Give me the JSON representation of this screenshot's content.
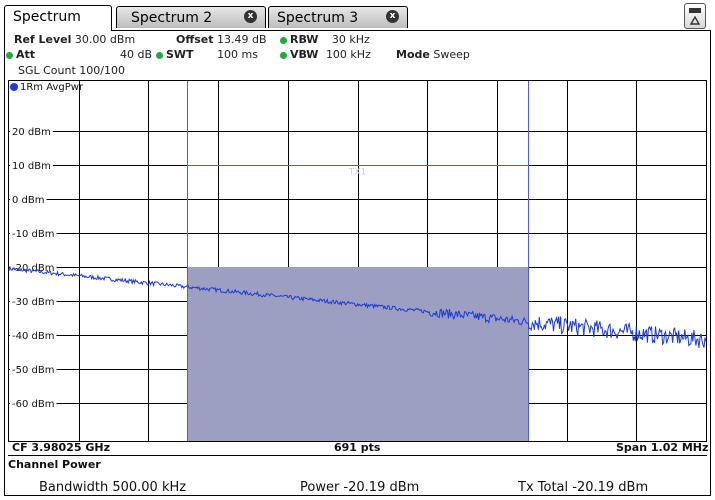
{
  "tabs": {
    "active": "Spectrum",
    "tab2": "Spectrum 2",
    "tab3": "Spectrum 3",
    "close": "x"
  },
  "header": {
    "ref_level_label": "Ref Level",
    "ref_level_value": "30.00 dBm",
    "offset_label": "Offset",
    "offset_value": "13.49 dB",
    "rbw_label": "RBW",
    "rbw_value": "30 kHz",
    "att_label": "Att",
    "att_value": "40 dB",
    "swt_label": "SWT",
    "swt_value": "100 ms",
    "vbw_label": "VBW",
    "vbw_value": "100 kHz",
    "mode_label": "Mode",
    "mode_value": "Sweep",
    "sgl_count": "SGL Count 100/100",
    "trace_label": "1Rm AvgPwr"
  },
  "footer": {
    "cf": "CF 3.98025 GHz",
    "pts": "691 pts",
    "span": "Span 1.02 MHz"
  },
  "channel_power": {
    "title": "Channel Power",
    "bandwidth": "Bandwidth  500.00 kHz",
    "power": "Power  -20.19 dBm",
    "tx_total": "Tx Total  -20.19 dBm"
  },
  "chart_data": {
    "type": "line",
    "ylim": [
      -70,
      30
    ],
    "y_ticks": [
      "20 dBm",
      "10 dBm",
      "0 dBm",
      "-10 dBm",
      "-20 dBm",
      "-30 dBm",
      "-40 dBm",
      "-50 dBm",
      "-60 dBm"
    ],
    "y_tick_values": [
      20,
      10,
      0,
      -10,
      -20,
      -30,
      -40,
      -50,
      -60
    ],
    "grid": true,
    "channel_label": "TX1",
    "channel_bounds_fraction": [
      0.255,
      0.745
    ],
    "channel_level_dbm": -20,
    "channel_line_dbm": 10,
    "trace_start_dbm": -20.5,
    "trace_end_dbm": -41.5,
    "trace_points": 691,
    "colors": {
      "trace": "#1d3bd6",
      "channel_fill": "#9c9ec2",
      "channel_lines": "#4a5ee6"
    }
  }
}
